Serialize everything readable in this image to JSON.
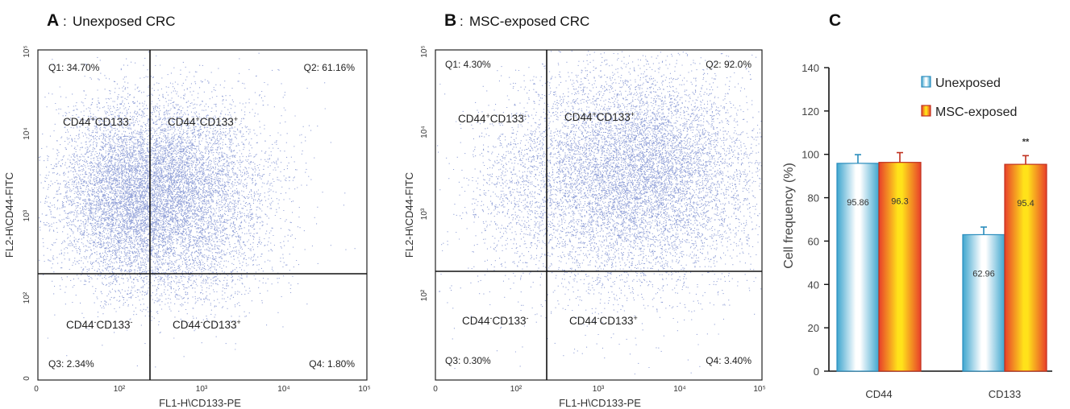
{
  "chart_data": [
    {
      "type": "scatter",
      "panel": "A",
      "title": "Unexposed CRC",
      "xlabel": "FL1-H\\CD133-PE",
      "ylabel": "FL2-H\\CD44-FITC",
      "x_ticks": [
        "0",
        "10²",
        "10³",
        "10⁴",
        "10⁵"
      ],
      "y_ticks": [
        "0",
        "10²",
        "10³",
        "10⁴",
        "10⁵"
      ],
      "quadrants": [
        {
          "id": "Q1",
          "label": "Q1: 34.70%",
          "value": 34.7,
          "population": "CD44+CD133-"
        },
        {
          "id": "Q2",
          "label": "Q2: 61.16%",
          "value": 61.16,
          "population": "CD44+CD133+"
        },
        {
          "id": "Q3",
          "label": "Q3: 2.34%",
          "value": 2.34,
          "population": "CD44-CD133-"
        },
        {
          "id": "Q4",
          "label": "Q4: 1.80%",
          "value": 1.8,
          "population": "CD44-CD133+"
        }
      ],
      "populations": {
        "tl": {
          "main": "CD44",
          "s1": "+",
          "mid": "CD133",
          "s2": "-"
        },
        "tr": {
          "main": "CD44",
          "s1": "+",
          "mid": "CD133",
          "s2": "+"
        },
        "bl": {
          "main": "CD44",
          "s1": "-",
          "mid": "CD133",
          "s2": "-"
        },
        "br": {
          "main": "CD44",
          "s1": "-",
          "mid": "CD133",
          "s2": "+"
        }
      },
      "color": "#3b55b8"
    },
    {
      "type": "scatter",
      "panel": "B",
      "title": "MSC-exposed CRC",
      "xlabel": "FL1-H\\CD133-PE",
      "ylabel": "FL2-H\\CD44-FITC",
      "x_ticks": [
        "0",
        "10²",
        "10³",
        "10⁴",
        "10⁵"
      ],
      "y_ticks": [
        "10²",
        "10³",
        "10⁴",
        "10⁵"
      ],
      "quadrants": [
        {
          "id": "Q1",
          "label": "Q1: 4.30%",
          "value": 4.3,
          "population": "CD44+CD133-"
        },
        {
          "id": "Q2",
          "label": "Q2: 92.0%",
          "value": 92.0,
          "population": "CD44+CD133+"
        },
        {
          "id": "Q3",
          "label": "Q3: 0.30%",
          "value": 0.3,
          "population": "CD44-CD133-"
        },
        {
          "id": "Q4",
          "label": "Q4: 3.40%",
          "value": 3.4,
          "population": "CD44-CD133+"
        }
      ],
      "populations": {
        "tl": {
          "main": "CD44",
          "s1": "+",
          "mid": "CD133",
          "s2": "-"
        },
        "tr": {
          "main": "CD44",
          "s1": "+",
          "mid": "CD133",
          "s2": "+"
        },
        "bl": {
          "main": "CD44",
          "s1": "-",
          "mid": "CD133",
          "s2": "-"
        },
        "br": {
          "main": "CD44",
          "s1": "-",
          "mid": "CD133",
          "s2": "+"
        }
      },
      "color": "#3b55b8"
    },
    {
      "type": "bar",
      "panel": "C",
      "categories": [
        "CD44",
        "CD133"
      ],
      "ylabel": "Cell frequency (%)",
      "ylim": [
        0,
        140
      ],
      "yticks": [
        0,
        20,
        40,
        60,
        80,
        100,
        120,
        140
      ],
      "series": [
        {
          "name": "Unexposed",
          "values": [
            95.86,
            62.96
          ],
          "labels": [
            "95.86",
            "62.96"
          ],
          "errors": [
            4,
            3.5
          ],
          "color": "#3fa6cf"
        },
        {
          "name": "MSC-exposed",
          "values": [
            96.3,
            95.4
          ],
          "labels": [
            "96.3",
            "95.4"
          ],
          "errors": [
            4.5,
            4
          ],
          "color": "#e8402a"
        }
      ],
      "annotations": [
        {
          "category": "CD133",
          "series": "MSC-exposed",
          "text": "**"
        }
      ],
      "legend": "top-right"
    }
  ]
}
